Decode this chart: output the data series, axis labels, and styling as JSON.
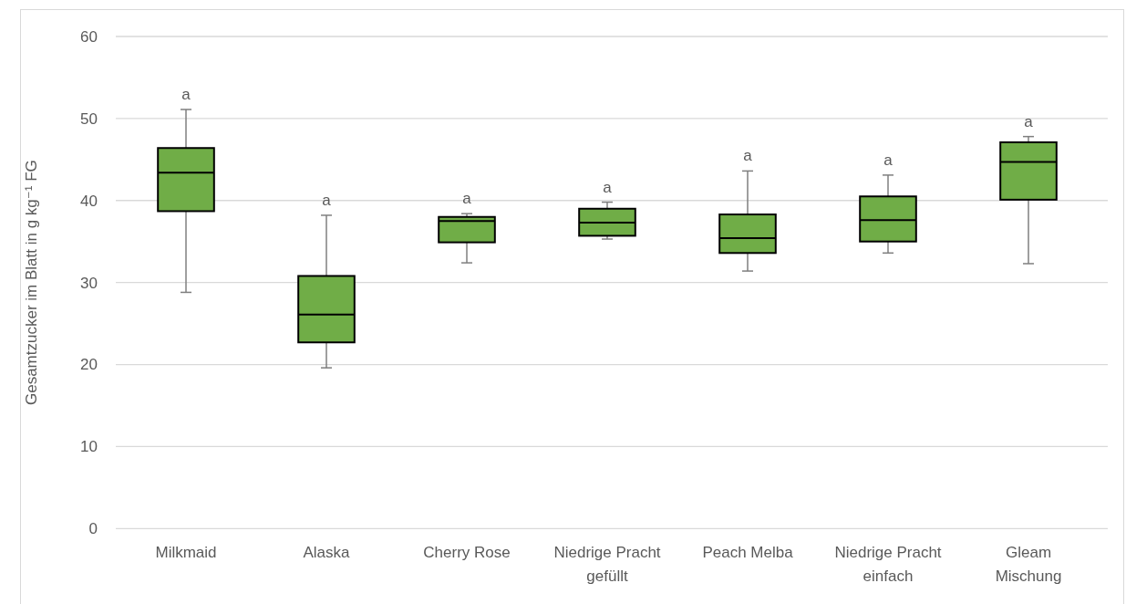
{
  "chart_data": {
    "type": "box",
    "ylabel": "Gesamtzucker im Blatt in g kg⁻¹ FG",
    "categories": [
      "Milkmaid",
      "Alaska",
      "Cherry Rose",
      "Niedrige Pracht gefüllt",
      "Peach Melba",
      "Niedrige Pracht einfach",
      "Gleam Mischung"
    ],
    "boxes": [
      {
        "low": 28.8,
        "q1": 38.7,
        "median": 43.4,
        "q3": 46.4,
        "high": 51.1
      },
      {
        "low": 19.6,
        "q1": 22.7,
        "median": 26.1,
        "q3": 30.8,
        "high": 38.2
      },
      {
        "low": 32.4,
        "q1": 34.9,
        "median": 37.5,
        "q3": 38.0,
        "high": 38.4
      },
      {
        "low": 35.3,
        "q1": 35.7,
        "median": 37.3,
        "q3": 39.0,
        "high": 39.8
      },
      {
        "low": 31.4,
        "q1": 33.6,
        "median": 35.4,
        "q3": 38.3,
        "high": 43.6
      },
      {
        "low": 33.6,
        "q1": 35.0,
        "median": 37.6,
        "q3": 40.5,
        "high": 43.1
      },
      {
        "low": 32.3,
        "q1": 40.1,
        "median": 44.7,
        "q3": 47.1,
        "high": 47.8
      }
    ],
    "color": "#70ad47",
    "ylim": [
      0,
      60
    ],
    "yticks": [
      0,
      10,
      20,
      30,
      40,
      50,
      60
    ],
    "grid": "y",
    "annotations": [
      {
        "text": "a",
        "x": "Milkmaid",
        "y": 51.1
      },
      {
        "text": "a",
        "x": "Alaska",
        "y": 38.2
      },
      {
        "text": "a",
        "x": "Cherry Rose",
        "y": 38.4
      },
      {
        "text": "a",
        "x": "Niedrige Pracht gefüllt",
        "y": 39.8
      },
      {
        "text": "a",
        "x": "Peach Melba",
        "y": 43.6
      },
      {
        "text": "a",
        "x": "Niedrige Pracht einfach",
        "y": 43.1
      },
      {
        "text": "a",
        "x": "Gleam Mischung",
        "y": 47.8
      }
    ]
  }
}
